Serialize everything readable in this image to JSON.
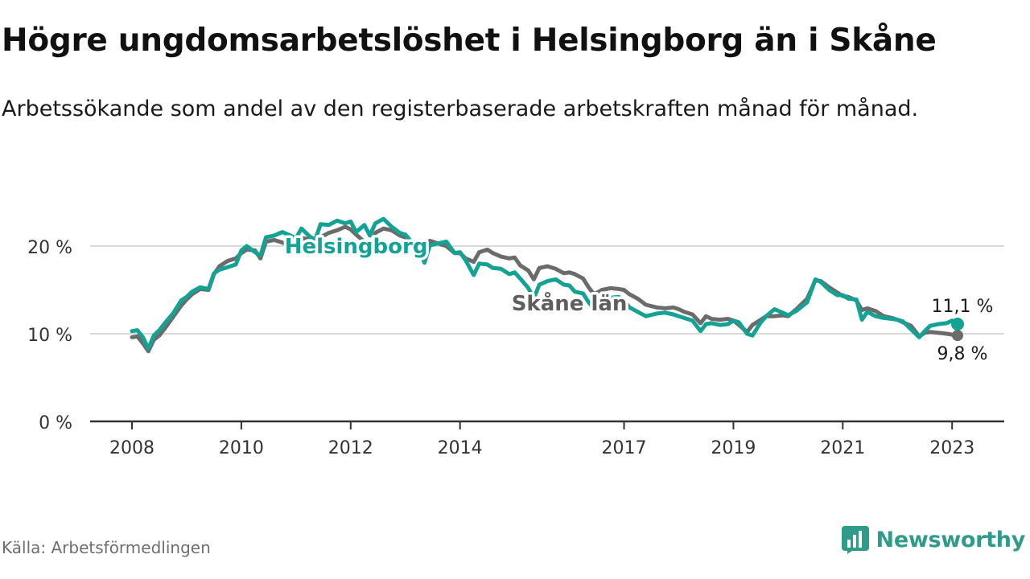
{
  "title": "Högre ungdomsarbetslöshet i Helsingborg än i Skåne",
  "subtitle": "Arbetssökande som andel av den registerbaserade arbetskraften månad för månad.",
  "source": "Källa: Arbetsförmedlingen",
  "brand": {
    "name": "Newsworthy",
    "icon": "bar-chart-logo-icon",
    "color": "#2f9c8a"
  },
  "chart_data": {
    "type": "line",
    "x_range": [
      2007.9,
      2023.25
    ],
    "ylim": [
      0,
      26
    ],
    "grid": true,
    "x_ticks": [
      {
        "value": 2008.0,
        "label": "2008"
      },
      {
        "value": 2010.0,
        "label": "2010"
      },
      {
        "value": 2012.0,
        "label": "2012"
      },
      {
        "value": 2014.0,
        "label": "2014"
      },
      {
        "value": 2017.0,
        "label": "2017"
      },
      {
        "value": 2019.0,
        "label": "2019"
      },
      {
        "value": 2021.0,
        "label": "2021"
      },
      {
        "value": 2023.0,
        "label": "2023"
      }
    ],
    "y_ticks": [
      {
        "value": 0,
        "label": "0 %"
      },
      {
        "value": 10,
        "label": "10 %"
      },
      {
        "value": 20,
        "label": "20 %"
      }
    ],
    "series": [
      {
        "name": "Skåne län",
        "label": "Skåne län",
        "color": "#6b6b6b",
        "label_color": "#5e5e5e",
        "label_at": [
          2016.0,
          13.5
        ],
        "end_label": "9,8 %",
        "end_value": 9.8,
        "points": [
          [
            2008.0,
            9.6
          ],
          [
            2008.1,
            9.7
          ],
          [
            2008.2,
            8.9
          ],
          [
            2008.3,
            8.0
          ],
          [
            2008.4,
            9.3
          ],
          [
            2008.5,
            9.8
          ],
          [
            2008.6,
            10.6
          ],
          [
            2008.75,
            11.9
          ],
          [
            2008.9,
            13.2
          ],
          [
            2009.0,
            13.9
          ],
          [
            2009.1,
            14.5
          ],
          [
            2009.25,
            15.1
          ],
          [
            2009.4,
            15.0
          ],
          [
            2009.5,
            16.8
          ],
          [
            2009.6,
            17.7
          ],
          [
            2009.75,
            18.3
          ],
          [
            2009.9,
            18.6
          ],
          [
            2010.0,
            19.2
          ],
          [
            2010.1,
            19.6
          ],
          [
            2010.25,
            19.5
          ],
          [
            2010.35,
            18.6
          ],
          [
            2010.45,
            20.5
          ],
          [
            2010.6,
            20.7
          ],
          [
            2010.75,
            20.4
          ],
          [
            2010.9,
            20.0
          ],
          [
            2011.0,
            20.1
          ],
          [
            2011.1,
            20.9
          ],
          [
            2011.25,
            20.8
          ],
          [
            2011.35,
            19.2
          ],
          [
            2011.45,
            21.0
          ],
          [
            2011.6,
            21.5
          ],
          [
            2011.75,
            21.8
          ],
          [
            2011.9,
            22.2
          ],
          [
            2012.0,
            21.9
          ],
          [
            2012.1,
            21.3
          ],
          [
            2012.25,
            20.5
          ],
          [
            2012.35,
            19.0
          ],
          [
            2012.45,
            21.5
          ],
          [
            2012.6,
            22.0
          ],
          [
            2012.75,
            21.8
          ],
          [
            2012.9,
            21.2
          ],
          [
            2013.0,
            21.0
          ],
          [
            2013.1,
            20.5
          ],
          [
            2013.25,
            20.2
          ],
          [
            2013.35,
            19.0
          ],
          [
            2013.45,
            20.6
          ],
          [
            2013.6,
            20.3
          ],
          [
            2013.75,
            20.0
          ],
          [
            2013.9,
            19.2
          ],
          [
            2014.0,
            19.2
          ],
          [
            2014.1,
            18.6
          ],
          [
            2014.25,
            18.2
          ],
          [
            2014.35,
            19.3
          ],
          [
            2014.5,
            19.6
          ],
          [
            2014.6,
            19.2
          ],
          [
            2014.75,
            18.8
          ],
          [
            2014.9,
            18.6
          ],
          [
            2015.0,
            18.7
          ],
          [
            2015.1,
            17.8
          ],
          [
            2015.25,
            17.2
          ],
          [
            2015.35,
            16.2
          ],
          [
            2015.45,
            17.5
          ],
          [
            2015.6,
            17.7
          ],
          [
            2015.75,
            17.4
          ],
          [
            2015.9,
            16.9
          ],
          [
            2016.0,
            17.0
          ],
          [
            2016.1,
            16.8
          ],
          [
            2016.25,
            16.3
          ],
          [
            2016.35,
            15.3
          ],
          [
            2016.45,
            14.5
          ],
          [
            2016.6,
            15.0
          ],
          [
            2016.75,
            15.2
          ],
          [
            2016.9,
            15.1
          ],
          [
            2017.0,
            15.0
          ],
          [
            2017.1,
            14.5
          ],
          [
            2017.25,
            14.0
          ],
          [
            2017.4,
            13.3
          ],
          [
            2017.6,
            13.0
          ],
          [
            2017.75,
            12.9
          ],
          [
            2017.9,
            13.0
          ],
          [
            2018.0,
            12.8
          ],
          [
            2018.1,
            12.5
          ],
          [
            2018.25,
            12.2
          ],
          [
            2018.4,
            11.2
          ],
          [
            2018.5,
            12.0
          ],
          [
            2018.6,
            11.7
          ],
          [
            2018.75,
            11.6
          ],
          [
            2018.9,
            11.7
          ],
          [
            2019.0,
            11.5
          ],
          [
            2019.1,
            11.0
          ],
          [
            2019.25,
            10.2
          ],
          [
            2019.35,
            11.0
          ],
          [
            2019.5,
            11.6
          ],
          [
            2019.6,
            12.0
          ],
          [
            2019.75,
            12.0
          ],
          [
            2019.9,
            12.1
          ],
          [
            2020.0,
            12.0
          ],
          [
            2020.15,
            12.8
          ],
          [
            2020.35,
            14.0
          ],
          [
            2020.5,
            16.1
          ],
          [
            2020.6,
            16.0
          ],
          [
            2020.75,
            15.3
          ],
          [
            2020.9,
            14.7
          ],
          [
            2021.0,
            14.3
          ],
          [
            2021.1,
            14.2
          ],
          [
            2021.25,
            13.8
          ],
          [
            2021.35,
            12.7
          ],
          [
            2021.45,
            12.9
          ],
          [
            2021.6,
            12.6
          ],
          [
            2021.75,
            12.0
          ],
          [
            2021.9,
            11.8
          ],
          [
            2022.0,
            11.6
          ],
          [
            2022.1,
            11.3
          ],
          [
            2022.25,
            10.9
          ],
          [
            2022.4,
            9.7
          ],
          [
            2022.5,
            10.1
          ],
          [
            2022.6,
            10.2
          ],
          [
            2022.75,
            10.1
          ],
          [
            2022.9,
            10.0
          ],
          [
            2023.0,
            9.9
          ],
          [
            2023.1,
            9.8
          ]
        ]
      },
      {
        "name": "Helsingborg",
        "label": "Helsingborg",
        "color": "#14a294",
        "label_color": "#14a294",
        "label_at": [
          2012.1,
          20.0
        ],
        "end_label": "11,1 %",
        "end_value": 11.1,
        "points": [
          [
            2008.0,
            10.3
          ],
          [
            2008.1,
            10.4
          ],
          [
            2008.2,
            9.6
          ],
          [
            2008.3,
            8.3
          ],
          [
            2008.4,
            9.8
          ],
          [
            2008.5,
            10.4
          ],
          [
            2008.6,
            11.2
          ],
          [
            2008.75,
            12.3
          ],
          [
            2008.9,
            13.8
          ],
          [
            2009.0,
            14.2
          ],
          [
            2009.1,
            14.8
          ],
          [
            2009.25,
            15.3
          ],
          [
            2009.4,
            15.1
          ],
          [
            2009.5,
            16.9
          ],
          [
            2009.6,
            17.3
          ],
          [
            2009.75,
            17.6
          ],
          [
            2009.9,
            17.9
          ],
          [
            2010.0,
            19.5
          ],
          [
            2010.1,
            20.0
          ],
          [
            2010.25,
            19.3
          ],
          [
            2010.35,
            18.9
          ],
          [
            2010.45,
            21.0
          ],
          [
            2010.6,
            21.2
          ],
          [
            2010.75,
            21.6
          ],
          [
            2010.9,
            21.2
          ],
          [
            2011.0,
            20.9
          ],
          [
            2011.1,
            22.0
          ],
          [
            2011.25,
            21.1
          ],
          [
            2011.35,
            20.7
          ],
          [
            2011.45,
            22.5
          ],
          [
            2011.6,
            22.4
          ],
          [
            2011.75,
            22.9
          ],
          [
            2011.9,
            22.6
          ],
          [
            2012.0,
            22.8
          ],
          [
            2012.1,
            21.6
          ],
          [
            2012.25,
            22.4
          ],
          [
            2012.35,
            21.2
          ],
          [
            2012.45,
            22.6
          ],
          [
            2012.6,
            23.1
          ],
          [
            2012.75,
            22.2
          ],
          [
            2012.9,
            21.5
          ],
          [
            2013.0,
            21.3
          ],
          [
            2013.1,
            20.6
          ],
          [
            2013.25,
            19.6
          ],
          [
            2013.35,
            18.1
          ],
          [
            2013.45,
            20.1
          ],
          [
            2013.6,
            20.3
          ],
          [
            2013.75,
            20.5
          ],
          [
            2013.9,
            19.2
          ],
          [
            2014.0,
            19.3
          ],
          [
            2014.1,
            18.4
          ],
          [
            2014.25,
            16.7
          ],
          [
            2014.35,
            18.0
          ],
          [
            2014.5,
            17.9
          ],
          [
            2014.6,
            17.5
          ],
          [
            2014.75,
            17.4
          ],
          [
            2014.9,
            16.8
          ],
          [
            2015.0,
            17.0
          ],
          [
            2015.1,
            16.3
          ],
          [
            2015.25,
            15.2
          ],
          [
            2015.35,
            14.0
          ],
          [
            2015.45,
            15.6
          ],
          [
            2015.6,
            16.0
          ],
          [
            2015.75,
            16.2
          ],
          [
            2015.9,
            15.6
          ],
          [
            2016.0,
            15.5
          ],
          [
            2016.1,
            14.8
          ],
          [
            2016.25,
            14.6
          ],
          [
            2016.35,
            13.6
          ],
          [
            2016.45,
            12.9
          ],
          [
            2016.6,
            13.5
          ],
          [
            2016.75,
            14.1
          ],
          [
            2016.9,
            14.2
          ],
          [
            2017.0,
            13.8
          ],
          [
            2017.1,
            13.0
          ],
          [
            2017.25,
            12.5
          ],
          [
            2017.4,
            12.0
          ],
          [
            2017.6,
            12.3
          ],
          [
            2017.75,
            12.4
          ],
          [
            2017.9,
            12.2
          ],
          [
            2018.0,
            12.0
          ],
          [
            2018.1,
            11.8
          ],
          [
            2018.25,
            11.5
          ],
          [
            2018.4,
            10.3
          ],
          [
            2018.5,
            11.1
          ],
          [
            2018.6,
            11.2
          ],
          [
            2018.75,
            11.0
          ],
          [
            2018.9,
            11.1
          ],
          [
            2019.0,
            11.5
          ],
          [
            2019.1,
            11.3
          ],
          [
            2019.25,
            10.0
          ],
          [
            2019.35,
            9.8
          ],
          [
            2019.5,
            11.3
          ],
          [
            2019.6,
            12.0
          ],
          [
            2019.75,
            12.8
          ],
          [
            2019.9,
            12.4
          ],
          [
            2020.0,
            12.1
          ],
          [
            2020.15,
            12.6
          ],
          [
            2020.35,
            13.6
          ],
          [
            2020.5,
            16.2
          ],
          [
            2020.6,
            15.9
          ],
          [
            2020.75,
            15.0
          ],
          [
            2020.9,
            14.4
          ],
          [
            2021.0,
            14.4
          ],
          [
            2021.1,
            14.0
          ],
          [
            2021.25,
            13.9
          ],
          [
            2021.35,
            11.6
          ],
          [
            2021.45,
            12.5
          ],
          [
            2021.6,
            12.0
          ],
          [
            2021.75,
            11.8
          ],
          [
            2021.9,
            11.7
          ],
          [
            2022.0,
            11.6
          ],
          [
            2022.1,
            11.4
          ],
          [
            2022.25,
            10.5
          ],
          [
            2022.4,
            9.6
          ],
          [
            2022.5,
            10.3
          ],
          [
            2022.6,
            10.9
          ],
          [
            2022.75,
            11.1
          ],
          [
            2022.9,
            11.2
          ],
          [
            2023.0,
            11.5
          ],
          [
            2023.1,
            11.1
          ]
        ]
      }
    ]
  }
}
